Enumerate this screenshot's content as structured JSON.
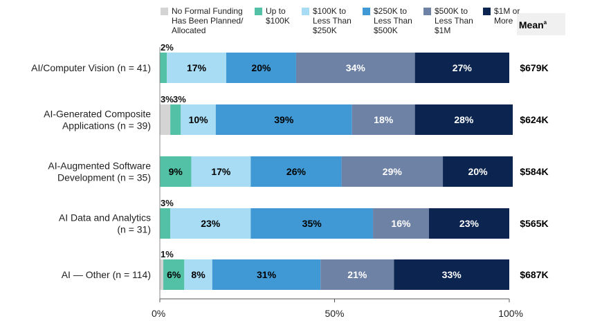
{
  "chart_data": {
    "type": "bar",
    "orientation": "horizontal",
    "stacked": true,
    "categories": [
      [
        "AI/Computer Vision (n = 41)"
      ],
      [
        "AI-Generated Composite",
        "Applications (n = 39)"
      ],
      [
        "AI-Augmented Software",
        "Development (n = 35)"
      ],
      [
        "AI Data and Analytics",
        "(n = 31)"
      ],
      [
        "AI — Other (n = 114)"
      ]
    ],
    "series": [
      {
        "name": [
          "No Formal Funding",
          "Has Been Planned/",
          "Allocated"
        ],
        "color": "#d4d4d4",
        "text_color": "#000000",
        "values": [
          0,
          3,
          0,
          0,
          1
        ],
        "labels": [
          "",
          "3%",
          "",
          "",
          "1%"
        ]
      },
      {
        "name": [
          "Up to",
          "$100K"
        ],
        "color": "#52c1a5",
        "text_color": "#000000",
        "values": [
          2,
          3,
          9,
          3,
          6
        ],
        "labels": [
          "2%",
          "3%",
          "9%",
          "3%",
          "6%"
        ]
      },
      {
        "name": [
          "$100K to",
          "Less Than",
          "$250K"
        ],
        "color": "#a8dcf4",
        "text_color": "#000000",
        "values": [
          17,
          10,
          17,
          23,
          8
        ],
        "labels": [
          "17%",
          "10%",
          "17%",
          "23%",
          "8%"
        ]
      },
      {
        "name": [
          "$250K to",
          "Less Than",
          "$500K"
        ],
        "color": "#4099d4",
        "text_color": "#000000",
        "values": [
          20,
          39,
          26,
          35,
          31
        ],
        "labels": [
          "20%",
          "39%",
          "26%",
          "35%",
          "31%"
        ]
      },
      {
        "name": [
          "$500K to",
          "Less Than",
          "$1M"
        ],
        "color": "#6e82a6",
        "text_color": "#ffffff",
        "values": [
          34,
          18,
          29,
          16,
          21
        ],
        "labels": [
          "34%",
          "18%",
          "29%",
          "16%",
          "21%"
        ]
      },
      {
        "name": [
          "$1M or",
          "More"
        ],
        "color": "#0b2550",
        "text_color": "#ffffff",
        "values": [
          27,
          28,
          20,
          23,
          33
        ],
        "labels": [
          "27%",
          "28%",
          "20%",
          "23%",
          "33%"
        ]
      }
    ],
    "mean_header": "Mean",
    "mean_footnote_marker": "a",
    "means": [
      "$679K",
      "$624K",
      "$584K",
      "$565K",
      "$687K"
    ],
    "x_ticks": [
      0,
      50,
      100
    ],
    "x_tick_labels": [
      "0%",
      "50%",
      "100%"
    ],
    "xlim": [
      0,
      100
    ],
    "grid": false,
    "legend_position": "top"
  }
}
